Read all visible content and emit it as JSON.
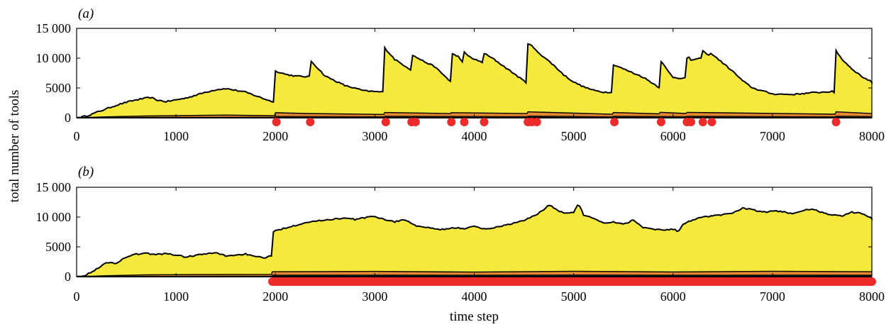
{
  "chart_data": [
    {
      "type": "area",
      "panel_label": "(a)",
      "xlim": [
        0,
        8000
      ],
      "ylim": [
        0,
        15000
      ],
      "xticks": [
        "0",
        "1000",
        "2000",
        "3000",
        "4000",
        "5000",
        "6000",
        "7000",
        "8000"
      ],
      "yticks": [
        "0",
        "5000",
        "10 000",
        "15 000"
      ],
      "colors": {
        "total": "#f4e93c",
        "middle": "#e8882e",
        "bottom": "#111111",
        "events": "#ee2b2b"
      },
      "series": [
        {
          "role": "total",
          "x": [
            0,
            100,
            200,
            300,
            400,
            500,
            600,
            700,
            750,
            800,
            900,
            1000,
            1100,
            1200,
            1300,
            1400,
            1450,
            1500,
            1600,
            1700,
            1800,
            1900,
            1990,
            2000,
            2010,
            2100,
            2200,
            2300,
            2340,
            2350,
            2360,
            2500,
            2700,
            2900,
            3090,
            3100,
            3110,
            3200,
            3350,
            3370,
            3380,
            3390,
            3400,
            3500,
            3600,
            3760,
            3770,
            3780,
            3850,
            3890,
            3900,
            3910,
            4000,
            4080,
            4090,
            4100,
            4200,
            4300,
            4400,
            4530,
            4540,
            4550,
            4570,
            4610,
            4620,
            4700,
            4800,
            4900,
            5000,
            5100,
            5200,
            5300,
            5390,
            5400,
            5410,
            5500,
            5600,
            5700,
            5860,
            5870,
            5880,
            5950,
            6000,
            6100,
            6130,
            6140,
            6150,
            6160,
            6170,
            6180,
            6250,
            6280,
            6290,
            6300,
            6370,
            6380,
            6390,
            6500,
            6600,
            6700,
            6800,
            7000,
            7200,
            7400,
            7600,
            7630,
            7640,
            7650,
            7700,
            7800,
            7900,
            8000
          ],
          "values": [
            0,
            300,
            900,
            1500,
            2100,
            2600,
            3000,
            3300,
            3400,
            3000,
            2700,
            3000,
            3300,
            3800,
            4300,
            4700,
            4800,
            4900,
            4600,
            4300,
            3700,
            3100,
            2600,
            7800,
            7800,
            7300,
            7000,
            6900,
            6900,
            9800,
            9500,
            7000,
            5400,
            4500,
            4300,
            11900,
            11500,
            9800,
            8200,
            8000,
            10500,
            10800,
            10300,
            9400,
            8600,
            6100,
            10500,
            10700,
            10200,
            9000,
            11000,
            10700,
            9800,
            9300,
            11100,
            10800,
            9800,
            8600,
            7400,
            5800,
            12500,
            12400,
            12200,
            11500,
            11300,
            10200,
            8800,
            7200,
            6000,
            5200,
            4600,
            4300,
            4300,
            8800,
            8900,
            8200,
            7500,
            6800,
            5100,
            9900,
            9500,
            7800,
            6800,
            6600,
            6700,
            9900,
            10100,
            10200,
            10000,
            9700,
            9800,
            10100,
            11400,
            11200,
            10300,
            10900,
            10700,
            9200,
            7800,
            6200,
            5000,
            4000,
            3900,
            4200,
            4400,
            4000,
            11300,
            11000,
            9800,
            8200,
            6900,
            6000
          ]
        },
        {
          "role": "middle",
          "x": [
            0,
            300,
            700,
            1100,
            1500,
            1990,
            2000,
            2300,
            3090,
            3100,
            3760,
            3770,
            4530,
            4540,
            5390,
            5400,
            5860,
            5870,
            6130,
            6140,
            7630,
            7640,
            8000
          ],
          "values": [
            0,
            150,
            300,
            380,
            450,
            330,
            850,
            720,
            560,
            880,
            700,
            860,
            700,
            1000,
            580,
            880,
            660,
            900,
            720,
            900,
            600,
            1000,
            700
          ]
        },
        {
          "role": "bottom",
          "x": [
            0,
            300,
            700,
            1100,
            1500,
            1990,
            2000,
            3090,
            3100,
            4530,
            4540,
            5390,
            5400,
            6130,
            6140,
            7630,
            7640,
            8000
          ],
          "values": [
            0,
            70,
            130,
            160,
            170,
            140,
            300,
            240,
            320,
            260,
            360,
            240,
            320,
            260,
            330,
            240,
            340,
            280
          ]
        }
      ],
      "events": [
        2010,
        2350,
        3110,
        3370,
        3410,
        3770,
        3900,
        4100,
        4540,
        4580,
        4630,
        5410,
        5880,
        6140,
        6180,
        6300,
        6390,
        7640
      ]
    },
    {
      "type": "area",
      "panel_label": "(b)",
      "xlim": [
        0,
        8000
      ],
      "ylim": [
        0,
        15000
      ],
      "xticks": [
        "0",
        "1000",
        "2000",
        "3000",
        "4000",
        "5000",
        "6000",
        "7000",
        "8000"
      ],
      "yticks": [
        "0",
        "5000",
        "10 000",
        "15 000"
      ],
      "xlabel": "time step",
      "colors": {
        "total": "#f4e93c",
        "middle": "#e8882e",
        "bottom": "#111111",
        "events": "#ee2b2b"
      },
      "series": [
        {
          "role": "total",
          "x": [
            0,
            100,
            200,
            300,
            400,
            500,
            600,
            700,
            800,
            900,
            1000,
            1100,
            1200,
            1300,
            1400,
            1500,
            1600,
            1700,
            1800,
            1900,
            1960,
            1970,
            2100,
            2200,
            2300,
            2400,
            2500,
            2600,
            2700,
            2800,
            2900,
            3000,
            3100,
            3200,
            3300,
            3400,
            3500,
            3600,
            3700,
            3800,
            3900,
            4000,
            4100,
            4200,
            4300,
            4400,
            4500,
            4600,
            4700,
            4750,
            4800,
            4900,
            5000,
            5050,
            5100,
            5200,
            5300,
            5400,
            5500,
            5600,
            5700,
            5800,
            5900,
            6000,
            6050,
            6100,
            6200,
            6300,
            6400,
            6500,
            6600,
            6700,
            6800,
            6900,
            7000,
            7100,
            7200,
            7300,
            7400,
            7500,
            7600,
            7700,
            7800,
            7900,
            8000
          ],
          "values": [
            0,
            300,
            1300,
            2300,
            2300,
            3300,
            3800,
            3900,
            3700,
            3900,
            3600,
            3300,
            3600,
            3800,
            4000,
            3500,
            3600,
            3800,
            3300,
            3200,
            3500,
            7500,
            8200,
            8600,
            9100,
            9300,
            9500,
            9700,
            9800,
            9600,
            9900,
            10100,
            9600,
            9200,
            9600,
            8600,
            8300,
            8000,
            7900,
            8200,
            8100,
            8400,
            8000,
            8200,
            8600,
            9000,
            9400,
            10200,
            11200,
            12100,
            11600,
            10600,
            10800,
            12200,
            10400,
            9800,
            9000,
            9200,
            8800,
            9500,
            8300,
            8000,
            7800,
            8000,
            7600,
            8700,
            9600,
            10000,
            10200,
            10400,
            10700,
            11500,
            11200,
            10800,
            11000,
            10900,
            10600,
            11100,
            11300,
            10800,
            10300,
            10200,
            10800,
            10600,
            9800
          ]
        },
        {
          "role": "middle",
          "x": [
            0,
            300,
            700,
            1100,
            1500,
            1960,
            1970,
            3000,
            4000,
            5000,
            6000,
            7000,
            8000
          ],
          "values": [
            0,
            150,
            300,
            350,
            370,
            380,
            820,
            880,
            760,
            900,
            780,
            900,
            820
          ]
        },
        {
          "role": "bottom",
          "x": [
            0,
            300,
            700,
            1100,
            1500,
            1960,
            1970,
            3000,
            4000,
            5000,
            6000,
            7000,
            8000
          ],
          "values": [
            0,
            60,
            110,
            130,
            140,
            150,
            330,
            350,
            320,
            360,
            320,
            350,
            330
          ]
        }
      ],
      "events": [
        1970,
        8000
      ]
    }
  ],
  "shared_ylabel": "total number of tools"
}
